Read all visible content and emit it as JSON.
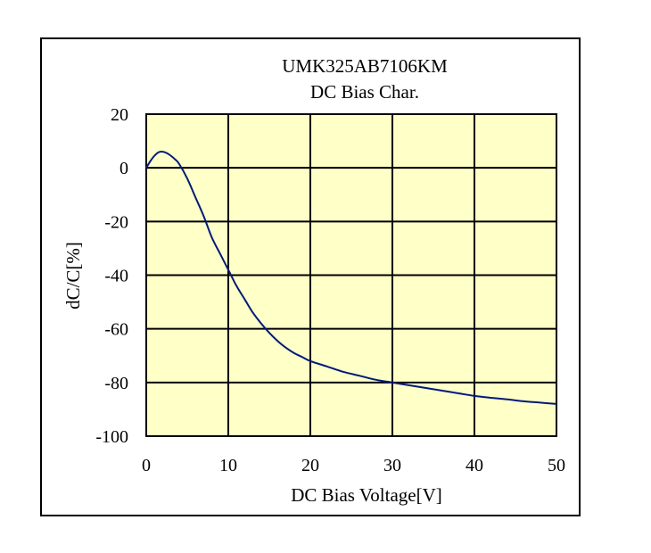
{
  "chart_data": {
    "type": "line",
    "title": "UMK325AB7106KM",
    "subtitle": "DC Bias Char.",
    "xlabel": "DC Bias Voltage[V]",
    "ylabel": "dC/C[%]",
    "xlim": [
      0,
      50
    ],
    "ylim": [
      -100,
      20
    ],
    "x_ticks": [
      0,
      10,
      20,
      30,
      40,
      50
    ],
    "y_ticks": [
      20,
      0,
      -20,
      -40,
      -60,
      -80,
      -100
    ],
    "grid": true,
    "legend": "none",
    "colors": {
      "plot_background": "#ffffc8",
      "line": "#001a7a",
      "grid": "#000000"
    },
    "series": [
      {
        "x": [
          0,
          0.5,
          1,
          1.5,
          2,
          2.5,
          3,
          3.5,
          4,
          5,
          6,
          7,
          8,
          9,
          10,
          11,
          12,
          13,
          14,
          15,
          16,
          17,
          18,
          19,
          20,
          22,
          24,
          26,
          28,
          30,
          32,
          34,
          36,
          38,
          40,
          42,
          44,
          46,
          48,
          50
        ],
        "values": [
          0,
          2.5,
          4.5,
          5.8,
          6,
          5.5,
          4.5,
          3.2,
          1.5,
          -4,
          -11,
          -18,
          -26,
          -32,
          -38,
          -44,
          -49,
          -54,
          -58,
          -61.5,
          -64.5,
          -67,
          -69,
          -70.5,
          -72,
          -74,
          -76,
          -77.5,
          -79,
          -80,
          -81,
          -82,
          -83,
          -84,
          -85,
          -85.7,
          -86.3,
          -87,
          -87.5,
          -88
        ]
      }
    ]
  }
}
